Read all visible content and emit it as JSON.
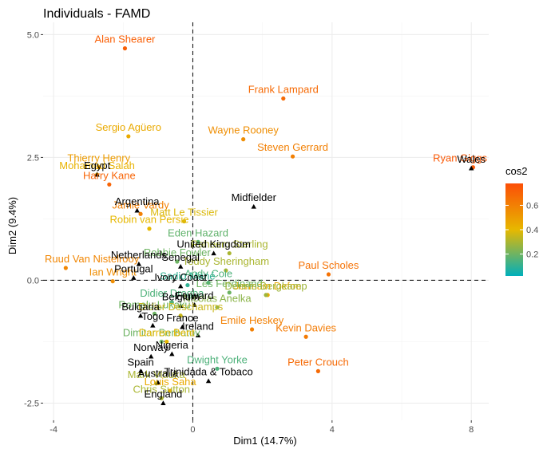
{
  "chart_data": {
    "type": "scatter",
    "title": "Individuals - FAMD",
    "xlabel": "Dim1 (14.7%)",
    "ylabel": "Dim2 (9.4%)",
    "xlim": [
      -4.3,
      8.5
    ],
    "ylim": [
      -2.85,
      5.25
    ],
    "x_ticks": [
      -4,
      0,
      4,
      8
    ],
    "y_ticks": [
      -2.5,
      0.0,
      2.5,
      5.0
    ],
    "x_tick_labels": [
      "-4",
      "0",
      "4",
      "8"
    ],
    "y_tick_labels": [
      "-2.5",
      "0.0",
      "2.5",
      "5.0"
    ],
    "grid": true,
    "reference_lines": {
      "x": 0,
      "y": 0
    },
    "legend": {
      "title": "cos2",
      "placement": "right",
      "gradient": [
        "#00AFBB",
        "#E7B800",
        "#FC4E07"
      ],
      "ticks": [
        0.2,
        0.4,
        0.6
      ],
      "tick_labels": [
        "0.2",
        "0.4",
        "0.6"
      ],
      "range": [
        0.02,
        0.78
      ]
    },
    "individuals": [
      {
        "name": "Alan Shearer",
        "x": -1.95,
        "y": 4.72,
        "cos2": 0.72
      },
      {
        "name": "Frank Lampard",
        "x": 2.6,
        "y": 3.7,
        "cos2": 0.68
      },
      {
        "name": "Wayne Rooney",
        "x": 1.45,
        "y": 2.87,
        "cos2": 0.55
      },
      {
        "name": "Steven Gerrard",
        "x": 2.87,
        "y": 2.52,
        "cos2": 0.6
      },
      {
        "name": "Ryan Giggs",
        "x": 8.05,
        "y": 2.3,
        "cos2": 0.74
      },
      {
        "name": "Sergio Agüero",
        "x": -1.85,
        "y": 2.93,
        "cos2": 0.45
      },
      {
        "name": "Thierry Henry",
        "x": -2.7,
        "y": 2.3,
        "cos2": 0.5
      },
      {
        "name": "Mohamed Salah",
        "x": -2.75,
        "y": 2.15,
        "cos2": 0.42
      },
      {
        "name": "Harry Kane",
        "x": -2.4,
        "y": 1.95,
        "cos2": 0.7
      },
      {
        "name": "Jamie Vardy",
        "x": -1.5,
        "y": 1.35,
        "cos2": 0.6
      },
      {
        "name": "Matt Le Tissier",
        "x": -0.25,
        "y": 1.2,
        "cos2": 0.38
      },
      {
        "name": "Robin van Persie",
        "x": -1.25,
        "y": 1.05,
        "cos2": 0.4
      },
      {
        "name": "Eden Hazard",
        "x": 0.15,
        "y": 0.78,
        "cos2": 0.18
      },
      {
        "name": "Raheem Sterling",
        "x": 1.05,
        "y": 0.55,
        "cos2": 0.3
      },
      {
        "name": "Ruud Van Nistelrooy",
        "x": -3.65,
        "y": 0.25,
        "cos2": 0.58
      },
      {
        "name": "Robbie Fowler",
        "x": -0.45,
        "y": 0.38,
        "cos2": 0.2
      },
      {
        "name": "Teddy Sheringham",
        "x": 0.95,
        "y": 0.2,
        "cos2": 0.3
      },
      {
        "name": "Paul Scholes",
        "x": 3.9,
        "y": 0.12,
        "cos2": 0.65
      },
      {
        "name": "Ian Wright",
        "x": -2.3,
        "y": -0.02,
        "cos2": 0.55
      },
      {
        "name": "Andy Cole",
        "x": 0.45,
        "y": -0.05,
        "cos2": 0.15
      },
      {
        "name": "Sadio Mané",
        "x": -0.15,
        "y": -0.1,
        "cos2": 0.1
      },
      {
        "name": "Jermain Defoe",
        "x": 2.15,
        "y": -0.3,
        "cos2": 0.45
      },
      {
        "name": "Didier Drogba",
        "x": -0.6,
        "y": -0.45,
        "cos2": 0.15
      },
      {
        "name": "Les Ferdinand",
        "x": 1.05,
        "y": -0.25,
        "cos2": 0.2
      },
      {
        "name": "Dennis Bergkamp",
        "x": 2.1,
        "y": -0.3,
        "cos2": 0.28
      },
      {
        "name": "Romelu Lukaku",
        "x": -1.1,
        "y": -0.68,
        "cos2": 0.2
      },
      {
        "name": "Didier Deschamps",
        "x": -0.35,
        "y": -0.72,
        "cos2": 0.35
      },
      {
        "name": "Nicolas Anelka",
        "x": 0.7,
        "y": -0.55,
        "cos2": 0.25
      },
      {
        "name": "Kevin Davies",
        "x": 3.25,
        "y": -1.15,
        "cos2": 0.62
      },
      {
        "name": "Dimitar Berbatov",
        "x": -0.9,
        "y": -1.25,
        "cos2": 0.2
      },
      {
        "name": "Darren Bent",
        "x": -0.75,
        "y": -1.25,
        "cos2": 0.4
      },
      {
        "name": "Emile Heskey",
        "x": 1.7,
        "y": -1.0,
        "cos2": 0.6
      },
      {
        "name": "Dwight Yorke",
        "x": 0.7,
        "y": -1.8,
        "cos2": 0.15
      },
      {
        "name": "Peter Crouch",
        "x": 3.6,
        "y": -1.85,
        "cos2": 0.68
      },
      {
        "name": "Mark Viduka",
        "x": -1.05,
        "y": -2.1,
        "cos2": 0.3
      },
      {
        "name": "Louis Saha",
        "x": -0.65,
        "y": -2.25,
        "cos2": 0.45
      },
      {
        "name": "Chris Sutton",
        "x": -0.9,
        "y": -2.4,
        "cos2": 0.3
      }
    ],
    "supplementary": [
      {
        "name": "Wales",
        "x": 8.0,
        "y": 2.28
      },
      {
        "name": "Egypt",
        "x": -2.75,
        "y": 2.15
      },
      {
        "name": "Argentina",
        "x": -1.6,
        "y": 1.42
      },
      {
        "name": "Midfielder",
        "x": 1.75,
        "y": 1.5
      },
      {
        "name": "United Kingdom",
        "x": 0.6,
        "y": 0.55
      },
      {
        "name": "Netherlands",
        "x": -1.55,
        "y": 0.33
      },
      {
        "name": "Senegal",
        "x": -0.35,
        "y": 0.28
      },
      {
        "name": "Portugal",
        "x": -1.7,
        "y": 0.05
      },
      {
        "name": "Ivory Coast",
        "x": -0.35,
        "y": -0.12
      },
      {
        "name": "Forward",
        "x": 0.05,
        "y": -0.5
      },
      {
        "name": "Belgium",
        "x": -0.35,
        "y": -0.52
      },
      {
        "name": "France",
        "x": -0.3,
        "y": -0.95
      },
      {
        "name": "Bulgaria",
        "x": -1.5,
        "y": -0.72
      },
      {
        "name": "Togo",
        "x": -1.15,
        "y": -0.92
      },
      {
        "name": "Ireland",
        "x": 0.15,
        "y": -1.12
      },
      {
        "name": "Nigeria",
        "x": -0.6,
        "y": -1.5
      },
      {
        "name": "Norway",
        "x": -1.2,
        "y": -1.55
      },
      {
        "name": "Spain",
        "x": -1.5,
        "y": -1.85
      },
      {
        "name": "Australia",
        "x": -1.0,
        "y": -2.08
      },
      {
        "name": "Trinidada & Tobaco",
        "x": 0.45,
        "y": -2.05
      },
      {
        "name": "England",
        "x": -0.85,
        "y": -2.5
      }
    ]
  }
}
